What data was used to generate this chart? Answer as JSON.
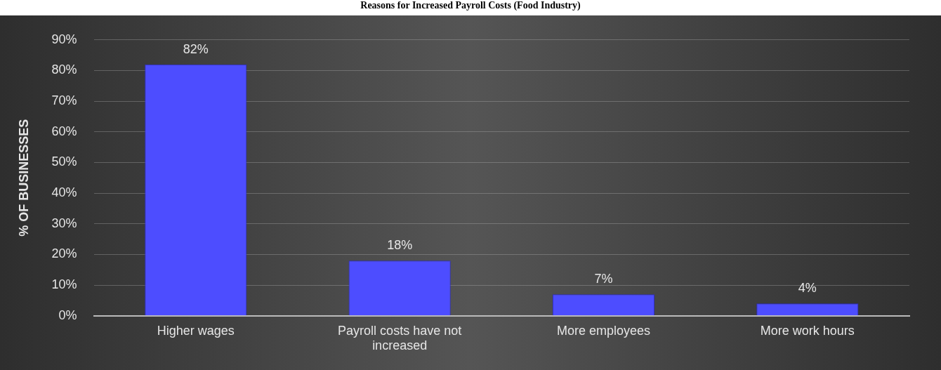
{
  "chart_data": {
    "type": "bar",
    "title": "Reasons for Increased Payroll Costs (Food Industry)",
    "ylabel": "% OF BUSINESSES",
    "categories": [
      "Higher wages",
      "Payroll costs have not increased",
      "More employees",
      "More work hours"
    ],
    "values": [
      82,
      18,
      7,
      4
    ],
    "value_labels": [
      "82%",
      "18%",
      "7%",
      "4%"
    ],
    "color": "#4d4dff",
    "ylim": [
      0,
      90
    ],
    "yticks": [
      {
        "value": 0,
        "label": "0%"
      },
      {
        "value": 10,
        "label": "10%"
      },
      {
        "value": 20,
        "label": "20%"
      },
      {
        "value": 30,
        "label": "30%"
      },
      {
        "value": 40,
        "label": "40%"
      },
      {
        "value": 50,
        "label": "50%"
      },
      {
        "value": 60,
        "label": "60%"
      },
      {
        "value": 70,
        "label": "70%"
      },
      {
        "value": 80,
        "label": "80%"
      },
      {
        "value": 90,
        "label": "90%"
      }
    ],
    "grid": "y",
    "legend": false
  }
}
